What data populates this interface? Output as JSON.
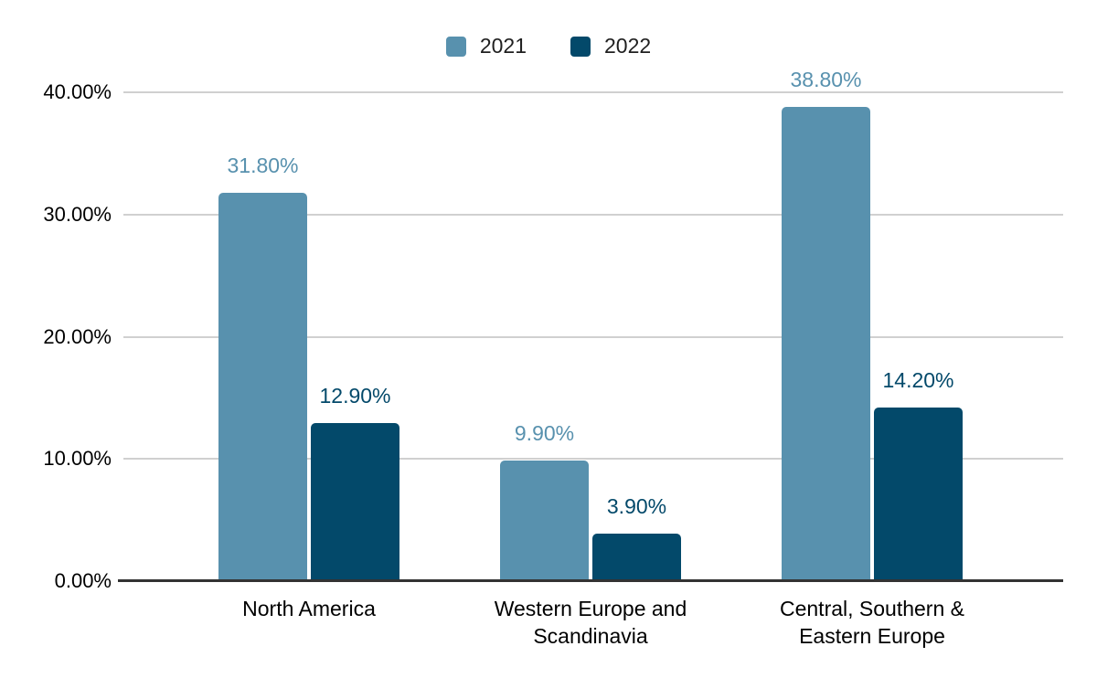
{
  "chart_data": {
    "type": "bar",
    "title": "",
    "xlabel": "",
    "ylabel": "",
    "categories": [
      "North America",
      "Western Europe and Scandinavia",
      "Central, Southern & Eastern Europe"
    ],
    "category_lines": [
      [
        "North America"
      ],
      [
        "Western Europe and",
        "Scandinavia"
      ],
      [
        "Central, Southern &",
        "Eastern Europe"
      ]
    ],
    "series": [
      {
        "name": "2021",
        "color": "#5891ae",
        "values": [
          31.8,
          9.9,
          38.8
        ],
        "labels": [
          "31.80%",
          "9.90%",
          "38.80%"
        ]
      },
      {
        "name": "2022",
        "color": "#03496a",
        "values": [
          12.9,
          3.9,
          14.2
        ],
        "labels": [
          "12.90%",
          "3.90%",
          "14.20%"
        ]
      }
    ],
    "ylim": [
      0,
      40
    ],
    "yticks": [
      {
        "value": 0,
        "label": "0.00%"
      },
      {
        "value": 10,
        "label": "10.00%"
      },
      {
        "value": 20,
        "label": "20.00%"
      },
      {
        "value": 30,
        "label": "30.00%"
      },
      {
        "value": 40,
        "label": "40.00%"
      }
    ],
    "grid": true,
    "legend_position": "top"
  },
  "colors": {
    "gridline": "#d0d0d0",
    "axis_line": "#333333",
    "tick_text": "#000000",
    "legend_text": "#1f1f1f",
    "background": "#ffffff"
  }
}
